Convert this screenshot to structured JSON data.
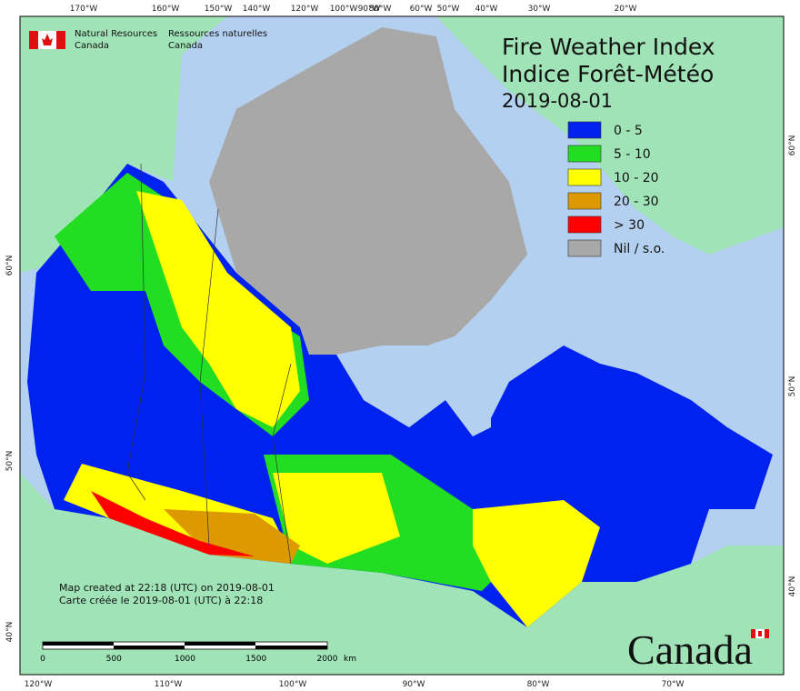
{
  "header": {
    "agency_en": [
      "Natural Resources",
      "Canada"
    ],
    "agency_fr": [
      "Ressources naturelles",
      "Canada"
    ]
  },
  "title": {
    "line1": "Fire Weather Index",
    "line2": "Indice Forêt-Météo",
    "date": "2019-08-01"
  },
  "legend": [
    {
      "label": "0 - 5",
      "color": "#0022ee"
    },
    {
      "label": "5 - 10",
      "color": "#22dd22"
    },
    {
      "label": "10 - 20",
      "color": "#ffff00"
    },
    {
      "label": "20 - 30",
      "color": "#dd9900"
    },
    {
      "label": "> 30",
      "color": "#ff0000"
    },
    {
      "label": "Nil / s.o.",
      "color": "#a8a8a8"
    }
  ],
  "axes": {
    "top": [
      "170°W",
      "160°W",
      "150°W",
      "140°W",
      "120°W",
      "100°W",
      "90°W",
      "80°W",
      "60°W",
      "50°W",
      "40°W",
      "30°W",
      "20°W"
    ],
    "bottom": [
      "120°W",
      "110°W",
      "100°W",
      "90°W",
      "80°W",
      "70°W"
    ],
    "left": [
      "60°N",
      "50°N",
      "40°N"
    ],
    "right": [
      "60°N",
      "50°N",
      "40°N"
    ]
  },
  "notes": [
    "Map created at 22:18 (UTC) on 2019-08-01",
    "Carte créée le 2019-08-01 (UTC) à 22:18"
  ],
  "scale": {
    "labels": [
      "0",
      "500",
      "1000",
      "1500",
      "2000"
    ],
    "unit": "km"
  },
  "wordmark": "Canada"
}
